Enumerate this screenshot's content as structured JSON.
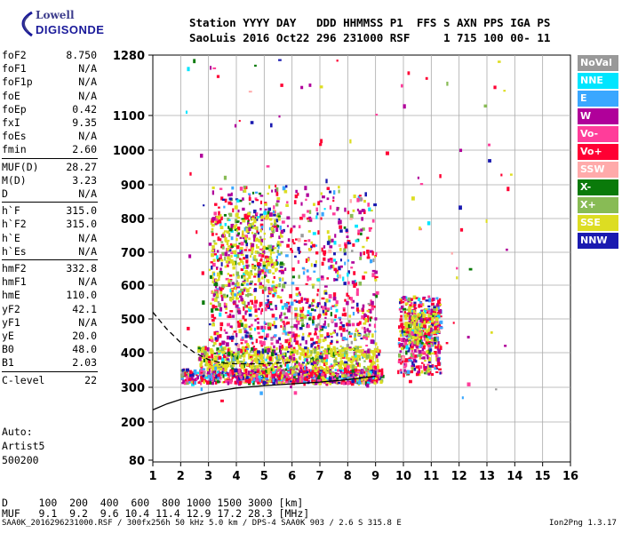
{
  "logo": {
    "line1": "Lowell",
    "line2": "DIGISONDE"
  },
  "header": {
    "line1": "Station YYYY DAY   DDD HHMMSS P1  FFS S AXN PPS IGA PS",
    "line2": "SaoLuis 2016 Oct22 296 231000 RSF     1 715 100 00- 11"
  },
  "params": [
    {
      "k": "foF2",
      "v": "8.750"
    },
    {
      "k": "foF1",
      "v": "N/A"
    },
    {
      "k": "foF1p",
      "v": "N/A"
    },
    {
      "k": "foE",
      "v": "N/A"
    },
    {
      "k": "foEp",
      "v": "0.42"
    },
    {
      "k": "fxI",
      "v": "9.35"
    },
    {
      "k": "foEs",
      "v": "N/A"
    },
    {
      "k": "fmin",
      "v": "2.60"
    },
    {
      "k": "MUF(D)",
      "v": "28.27"
    },
    {
      "k": "M(D)",
      "v": "3.23"
    },
    {
      "k": "D",
      "v": "N/A"
    },
    {
      "k": "h`F",
      "v": "315.0"
    },
    {
      "k": "h`F2",
      "v": "315.0"
    },
    {
      "k": "h`E",
      "v": "N/A"
    },
    {
      "k": "h`Es",
      "v": "N/A"
    },
    {
      "k": "hmF2",
      "v": "332.8"
    },
    {
      "k": "hmF1",
      "v": "N/A"
    },
    {
      "k": "hmE",
      "v": "110.0"
    },
    {
      "k": "yF2",
      "v": "42.1"
    },
    {
      "k": "yF1",
      "v": "N/A"
    },
    {
      "k": "yE",
      "v": "20.0"
    },
    {
      "k": "B0",
      "v": "48.0"
    },
    {
      "k": "B1",
      "v": "2.03"
    },
    {
      "k": "C-level",
      "v": "22"
    }
  ],
  "auto": {
    "l1": "Auto:",
    "l2": "Artist5",
    "l3": "500200"
  },
  "legend": [
    {
      "label": "NoVal",
      "color": "#999999"
    },
    {
      "label": "NNE",
      "color": "#00e5ff"
    },
    {
      "label": "E",
      "color": "#3aa7ff"
    },
    {
      "label": "W",
      "color": "#b0009a"
    },
    {
      "label": "Vo-",
      "color": "#ff3d9a"
    },
    {
      "label": "Vo+",
      "color": "#ff0033"
    },
    {
      "label": "SSW",
      "color": "#ffaaaa"
    },
    {
      "label": "X-",
      "color": "#0a7a0a"
    },
    {
      "label": "X+",
      "color": "#88bb55"
    },
    {
      "label": "SSE",
      "color": "#dddd22"
    },
    {
      "label": "NNW",
      "color": "#1a1ab0"
    }
  ],
  "bottom": {
    "d_row": "D     100  200  400  600  800 1000 1500 3000 [km]",
    "muf_row": "MUF   9.1  9.2  9.6 10.4 11.4 12.9 17.2 28.3 [MHz]"
  },
  "footer": {
    "left": "SAA0K_2016296231000.RSF / 300fx256h 50 kHz 5.0 km / DPS-4 SAA0K 903 / 2.6 S 315.8 E",
    "right": "Ion2Png 1.3.17"
  },
  "chart_data": {
    "type": "scatter",
    "title": "",
    "xlabel": "",
    "ylabel": "",
    "xlim": [
      1,
      16
    ],
    "ylim": [
      80,
      1280
    ],
    "x_ticks": [
      1,
      2,
      3,
      4,
      5,
      6,
      7,
      8,
      9,
      10,
      11,
      12,
      13,
      14,
      15,
      16
    ],
    "y_ticks": [
      80,
      200,
      300,
      400,
      500,
      600,
      700,
      800,
      900,
      1000,
      1100,
      1280
    ],
    "grid": true,
    "y_scale": "log-like",
    "series": [
      {
        "name": "profile",
        "style": "solid",
        "points": [
          [
            1,
            235
          ],
          [
            1.5,
            252
          ],
          [
            2,
            265
          ],
          [
            3,
            285
          ],
          [
            4,
            298
          ],
          [
            5,
            305
          ],
          [
            6,
            310
          ],
          [
            7,
            315
          ],
          [
            8,
            322
          ],
          [
            9,
            332
          ]
        ]
      },
      {
        "name": "trace",
        "style": "dashed",
        "points": [
          [
            1,
            520
          ],
          [
            1.5,
            470
          ],
          [
            2,
            430
          ],
          [
            2.5,
            400
          ],
          [
            3,
            380
          ],
          [
            3.5,
            370
          ],
          [
            4,
            368
          ],
          [
            5,
            368
          ],
          [
            6,
            372
          ]
        ]
      }
    ]
  }
}
